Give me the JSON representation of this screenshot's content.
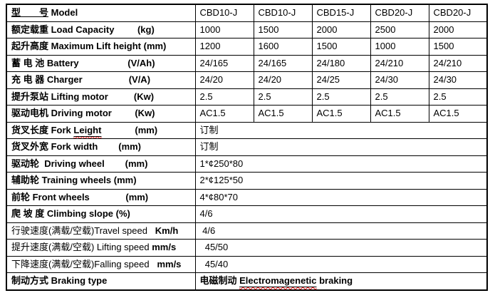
{
  "colors": {
    "background": "#ffffff",
    "text": "#000000",
    "highlight_red": "#ff0000",
    "border": "#000000"
  },
  "table": {
    "description": "Forklift model specification table",
    "rows": [
      {
        "name": "model",
        "label": [
          {
            "t": "型　　号",
            "c": "u"
          },
          {
            "t": " Model",
            "c": ""
          }
        ],
        "values": [
          "CBD10-J",
          "CBD10-J",
          "CBD15-J",
          "CBD20-J",
          "CBD20-J"
        ]
      },
      {
        "name": "load-capacity",
        "label": [
          {
            "t": "额定载重 Load Capacity",
            "c": ""
          },
          {
            "t": "         (kg)",
            "c": ""
          }
        ],
        "values": [
          "1000",
          "1500",
          "2000",
          "2500",
          "2000"
        ]
      },
      {
        "name": "lift-height",
        "label": [
          {
            "t": "起升高度 Maximum Lift height (mm)",
            "c": ""
          }
        ],
        "values": [
          "1200",
          "1600",
          "1500",
          "1000",
          "1500"
        ]
      },
      {
        "name": "battery",
        "label": [
          {
            "t": "蓄 电 池 Battery",
            "c": ""
          },
          {
            "t": "                   (V/Ah)",
            "c": ""
          }
        ],
        "values": [
          "24/165",
          "24/165",
          "24/180",
          "24/210",
          "24/210"
        ]
      },
      {
        "name": "charger",
        "label": [
          {
            "t": "充 电 器 Charger",
            "c": ""
          },
          {
            "t": "                  (V/A)",
            "c": ""
          }
        ],
        "values": [
          "24/20",
          "24/20",
          "24/25",
          "24/30",
          "24/30"
        ]
      },
      {
        "name": "lifting-motor",
        "label": [
          {
            "t": "提升泵站 Lifting motor",
            "c": ""
          },
          {
            "t": "          (Kw)",
            "c": ""
          }
        ],
        "values": [
          "2.5",
          "2.5",
          "2.5",
          "2.5",
          "2.5"
        ],
        "red": true
      },
      {
        "name": "driving-motor",
        "label": [
          {
            "t": "驱动电机 Driving motor",
            "c": ""
          },
          {
            "t": "         (Kw)",
            "c": ""
          }
        ],
        "values": [
          "AC1.5",
          "AC1.5",
          "AC1.5",
          "AC1.5",
          "AC1.5"
        ]
      },
      {
        "name": "fork-length",
        "label": [
          {
            "t": "货叉长度 Fork ",
            "c": ""
          },
          {
            "t": "Leight",
            "c": "u sq"
          },
          {
            "t": "             (mm)",
            "c": ""
          }
        ],
        "span": [
          {
            "t": "订制",
            "c": "rg"
          }
        ]
      },
      {
        "name": "fork-width",
        "label": [
          {
            "t": "货叉外宽 Fork width",
            "c": ""
          },
          {
            "t": "        (mm)",
            "c": ""
          }
        ],
        "span": [
          {
            "t": "订制",
            "c": "rg"
          }
        ]
      },
      {
        "name": "driving-wheel",
        "label": [
          {
            "t": "驱动轮  Driving wheel",
            "c": ""
          },
          {
            "t": "        (mm)",
            "c": ""
          }
        ],
        "span": [
          {
            "t": "1*¢250*80",
            "c": "rg"
          }
        ]
      },
      {
        "name": "training-wheels",
        "label": [
          {
            "t": "辅助轮 Training wheels (mm)",
            "c": ""
          }
        ],
        "span": [
          {
            "t": "2*¢125*50",
            "c": "rg"
          }
        ]
      },
      {
        "name": "front-wheels",
        "label": [
          {
            "t": "前轮 Front wheels",
            "c": ""
          },
          {
            "t": "              (mm)",
            "c": ""
          }
        ],
        "span": [
          {
            "t": "4*¢80*70",
            "c": "rg"
          }
        ]
      },
      {
        "name": "climbing-slope",
        "label": [
          {
            "t": "爬 坡 度 Climbing slope (%)",
            "c": ""
          }
        ],
        "span": [
          {
            "t": "4/6",
            "c": "rg"
          }
        ]
      },
      {
        "name": "travel-speed",
        "label": [
          {
            "t": "行驶速度(满载/空载)Travel speed",
            "c": "rg"
          },
          {
            "t": "   ",
            "c": "rg"
          },
          {
            "t": "Km/h",
            "c": ""
          }
        ],
        "span": [
          {
            "t": " 4/6",
            "c": "rg"
          }
        ]
      },
      {
        "name": "lifting-speed",
        "label": [
          {
            "t": "提升速度(满载/空载) Lifting speed ",
            "c": "rg"
          },
          {
            "t": "mm/s",
            "c": ""
          }
        ],
        "span": [
          {
            "t": "  45/50",
            "c": "rg"
          }
        ]
      },
      {
        "name": "falling-speed",
        "label": [
          {
            "t": "下降速度(满载/空载)Falling speed",
            "c": "rg"
          },
          {
            "t": "   ",
            "c": "rg"
          },
          {
            "t": "mm/s",
            "c": ""
          }
        ],
        "span": [
          {
            "t": "  45/40",
            "c": "rg"
          }
        ]
      },
      {
        "name": "braking-type",
        "label": [
          {
            "t": "制动方式 Braking type",
            "c": ""
          }
        ],
        "span": [
          {
            "t": "电磁制动 ",
            "c": "b"
          },
          {
            "t": "Electromagenetic",
            "c": "b u sq"
          },
          {
            "t": " braking",
            "c": "b"
          }
        ]
      }
    ]
  }
}
